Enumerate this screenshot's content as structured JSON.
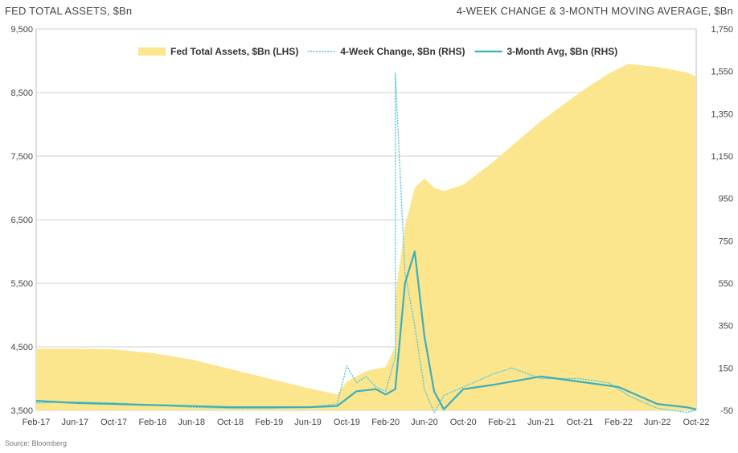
{
  "header": {
    "left_title": "FED TOTAL ASSETS, $Bn",
    "right_title": "4-WEEK CHANGE & 3-MONTH MOVING AVERAGE, $Bn"
  },
  "source": "Source: Bloomberg",
  "chart_data": {
    "type": "line",
    "x_ticks": [
      "Feb-17",
      "Jun-17",
      "Oct-17",
      "Feb-18",
      "Jun-18",
      "Oct-18",
      "Feb-19",
      "Jun-19",
      "Oct-19",
      "Feb-20",
      "Jun-20",
      "Oct-20",
      "Feb-21",
      "Jun-21",
      "Oct-21",
      "Feb-22",
      "Jun-22",
      "Oct-22"
    ],
    "x_range": [
      "2017-02",
      "2022-10"
    ],
    "y_left": {
      "range": [
        3500,
        9500
      ],
      "ticks": [
        "3,500",
        "4,500",
        "5,500",
        "6,500",
        "7,500",
        "8,500",
        "9,500"
      ]
    },
    "y_right": {
      "range": [
        -50,
        1750
      ],
      "ticks": [
        "-50",
        "150",
        "350",
        "550",
        "750",
        "950",
        "1,150",
        "1,350",
        "1,550",
        "1,750"
      ]
    },
    "grid": true,
    "legend_position": "top",
    "series": [
      {
        "name": "Fed Total Assets, $Bn (LHS)",
        "style": "area",
        "axis": "left",
        "color": "#FBE58D",
        "points": [
          [
            "2017-02",
            4470
          ],
          [
            "2017-06",
            4470
          ],
          [
            "2017-10",
            4460
          ],
          [
            "2018-02",
            4400
          ],
          [
            "2018-06",
            4300
          ],
          [
            "2018-10",
            4150
          ],
          [
            "2019-02",
            4000
          ],
          [
            "2019-06",
            3850
          ],
          [
            "2019-09",
            3750
          ],
          [
            "2019-10",
            3950
          ],
          [
            "2019-12",
            4120
          ],
          [
            "2020-02",
            4180
          ],
          [
            "2020-03",
            4500
          ],
          [
            "2020-03",
            5300
          ],
          [
            "2020-04",
            6400
          ],
          [
            "2020-05",
            7000
          ],
          [
            "2020-06",
            7150
          ],
          [
            "2020-07",
            7000
          ],
          [
            "2020-08",
            6950
          ],
          [
            "2020-10",
            7050
          ],
          [
            "2021-01",
            7400
          ],
          [
            "2021-06",
            8050
          ],
          [
            "2021-10",
            8500
          ],
          [
            "2022-01",
            8800
          ],
          [
            "2022-03",
            8950
          ],
          [
            "2022-06",
            8900
          ],
          [
            "2022-09",
            8820
          ],
          [
            "2022-10",
            8750
          ]
        ]
      },
      {
        "name": "4-Week Change, $Bn (RHS)",
        "style": "dotted",
        "axis": "right",
        "color": "#5BC8D8",
        "points": [
          [
            "2017-02",
            -15
          ],
          [
            "2017-06",
            -10
          ],
          [
            "2017-10",
            -15
          ],
          [
            "2018-02",
            -25
          ],
          [
            "2018-06",
            -35
          ],
          [
            "2018-10",
            -40
          ],
          [
            "2019-02",
            -40
          ],
          [
            "2019-06",
            -35
          ],
          [
            "2019-09",
            -20
          ],
          [
            "2019-10",
            160
          ],
          [
            "2019-11",
            80
          ],
          [
            "2019-12",
            110
          ],
          [
            "2020-01",
            60
          ],
          [
            "2020-02",
            40
          ],
          [
            "2020-03",
            200
          ],
          [
            "2020-03",
            1540
          ],
          [
            "2020-04",
            600
          ],
          [
            "2020-05",
            350
          ],
          [
            "2020-06",
            50
          ],
          [
            "2020-07",
            -60
          ],
          [
            "2020-08",
            20
          ],
          [
            "2020-10",
            60
          ],
          [
            "2021-01",
            120
          ],
          [
            "2021-03",
            150
          ],
          [
            "2021-06",
            100
          ],
          [
            "2021-10",
            100
          ],
          [
            "2022-01",
            80
          ],
          [
            "2022-03",
            20
          ],
          [
            "2022-06",
            -40
          ],
          [
            "2022-09",
            -60
          ],
          [
            "2022-10",
            -50
          ]
        ]
      },
      {
        "name": "3-Month Avg, $Bn (RHS)",
        "style": "line",
        "axis": "right",
        "color": "#3BAFBF",
        "points": [
          [
            "2017-02",
            -5
          ],
          [
            "2017-06",
            -15
          ],
          [
            "2017-10",
            -20
          ],
          [
            "2018-02",
            -25
          ],
          [
            "2018-06",
            -30
          ],
          [
            "2018-10",
            -35
          ],
          [
            "2019-02",
            -35
          ],
          [
            "2019-06",
            -35
          ],
          [
            "2019-09",
            -30
          ],
          [
            "2019-11",
            40
          ],
          [
            "2020-01",
            50
          ],
          [
            "2020-02",
            25
          ],
          [
            "2020-03",
            50
          ],
          [
            "2020-04",
            550
          ],
          [
            "2020-05",
            700
          ],
          [
            "2020-06",
            300
          ],
          [
            "2020-07",
            40
          ],
          [
            "2020-08",
            -45
          ],
          [
            "2020-10",
            50
          ],
          [
            "2021-01",
            70
          ],
          [
            "2021-06",
            110
          ],
          [
            "2021-10",
            85
          ],
          [
            "2022-02",
            60
          ],
          [
            "2022-06",
            -20
          ],
          [
            "2022-09",
            -35
          ],
          [
            "2022-10",
            -45
          ]
        ]
      }
    ]
  }
}
